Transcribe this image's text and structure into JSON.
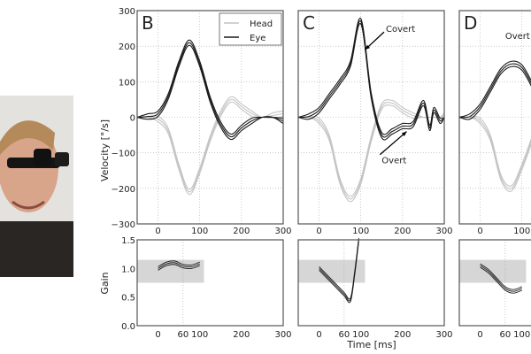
{
  "figure": {
    "photo_label": "subject wearing head-mounted eye tracker"
  },
  "colors": {
    "head": "#c4c4c4",
    "eye": "#1a1a1a",
    "band": "#d6d6d6",
    "grid": "#aaaaaa"
  },
  "labels": {
    "velocity_ylabel": "Velocity [°/s]",
    "gain_ylabel": "Gain",
    "time_xlabel": "Time [ms]",
    "legend_head": "Head",
    "legend_eye": "Eye"
  },
  "chart_data": [
    {
      "type": "line",
      "panel": "B",
      "title": "B",
      "xlim": [
        -50,
        300
      ],
      "ylim": [
        -300,
        300
      ],
      "xticks": [
        0,
        100,
        200,
        300
      ],
      "yticks": [
        -300,
        -200,
        -100,
        0,
        100,
        200,
        300
      ],
      "grid": true,
      "legend": "top-right",
      "x": [
        -50,
        -25,
        0,
        25,
        50,
        75,
        100,
        125,
        150,
        175,
        200,
        225,
        250,
        275,
        300
      ],
      "series": [
        {
          "name": "Head",
          "values": [
            0,
            0,
            -5,
            -40,
            -140,
            -210,
            -150,
            -60,
            10,
            50,
            30,
            10,
            0,
            5,
            10
          ]
        },
        {
          "name": "Eye",
          "values": [
            0,
            2,
            10,
            60,
            150,
            210,
            150,
            50,
            -20,
            -55,
            -30,
            -10,
            0,
            0,
            -10
          ]
        }
      ],
      "annotations": [],
      "gain": {
        "xlim": [
          -50,
          300
        ],
        "ylim": [
          0,
          1.5
        ],
        "xticks": [
          0,
          60,
          100,
          200,
          300
        ],
        "yticks": [
          0.0,
          0.5,
          1.0,
          1.5
        ],
        "band": [
          0.75,
          1.15
        ],
        "band_x": [
          -50,
          110
        ],
        "x": [
          0,
          20,
          40,
          60,
          80,
          100
        ],
        "values": [
          1.0,
          1.08,
          1.1,
          1.04,
          1.03,
          1.08
        ]
      }
    },
    {
      "type": "line",
      "panel": "C",
      "title": "C",
      "xlim": [
        -50,
        300
      ],
      "ylim": [
        -300,
        300
      ],
      "xticks": [
        0,
        100,
        200,
        300
      ],
      "yticks": [
        -300,
        -200,
        -100,
        0,
        100,
        200,
        300
      ],
      "grid": true,
      "x": [
        -50,
        -25,
        0,
        25,
        50,
        75,
        100,
        125,
        150,
        175,
        200,
        225,
        250,
        265,
        275,
        290,
        300
      ],
      "series": [
        {
          "name": "Head",
          "values": [
            0,
            0,
            -10,
            -60,
            -180,
            -230,
            -180,
            -60,
            30,
            40,
            20,
            5,
            0,
            0,
            0,
            0,
            5
          ]
        },
        {
          "name": "Eye",
          "values": [
            0,
            2,
            20,
            60,
            100,
            150,
            270,
            60,
            -50,
            -40,
            -25,
            -20,
            40,
            -30,
            20,
            -10,
            0
          ]
        }
      ],
      "annotations": [
        {
          "text": "Covert",
          "x": 160,
          "y": 240,
          "arrow_to": [
            110,
            190
          ]
        },
        {
          "text": "Overt",
          "x": 150,
          "y": -130,
          "arrow_to": [
            210,
            -40
          ]
        }
      ],
      "gain": {
        "xlim": [
          -50,
          300
        ],
        "ylim": [
          0,
          1.5
        ],
        "xticks": [
          0,
          60,
          100,
          200,
          300
        ],
        "yticks": [
          0.0,
          0.5,
          1.0,
          1.5
        ],
        "band": [
          0.75,
          1.15
        ],
        "band_x": [
          -50,
          110
        ],
        "x": [
          0,
          20,
          40,
          60,
          75,
          85,
          95
        ],
        "values": [
          1.0,
          0.85,
          0.7,
          0.55,
          0.45,
          0.9,
          1.5
        ]
      }
    },
    {
      "type": "line",
      "panel": "D",
      "title": "D",
      "xlim": [
        -50,
        300
      ],
      "ylim": [
        -300,
        300
      ],
      "xticks": [
        0,
        100
      ],
      "yticks": [],
      "grid": true,
      "x": [
        -50,
        -25,
        0,
        25,
        50,
        75,
        100,
        125
      ],
      "series": [
        {
          "name": "Head",
          "values": [
            0,
            0,
            -10,
            -60,
            -170,
            -200,
            -140,
            -60
          ]
        },
        {
          "name": "Eye",
          "values": [
            0,
            2,
            30,
            80,
            130,
            150,
            140,
            90
          ]
        }
      ],
      "annotations": [
        {
          "text": "Overt",
          "x": 60,
          "y": 220
        }
      ],
      "gain": {
        "xlim": [
          -50,
          300
        ],
        "ylim": [
          0,
          1.5
        ],
        "xticks": [
          0,
          60,
          100
        ],
        "yticks": [],
        "band": [
          0.75,
          1.15
        ],
        "band_x": [
          -50,
          110
        ],
        "x": [
          0,
          20,
          40,
          60,
          80,
          100
        ],
        "values": [
          1.05,
          0.95,
          0.8,
          0.65,
          0.6,
          0.65
        ]
      }
    }
  ]
}
